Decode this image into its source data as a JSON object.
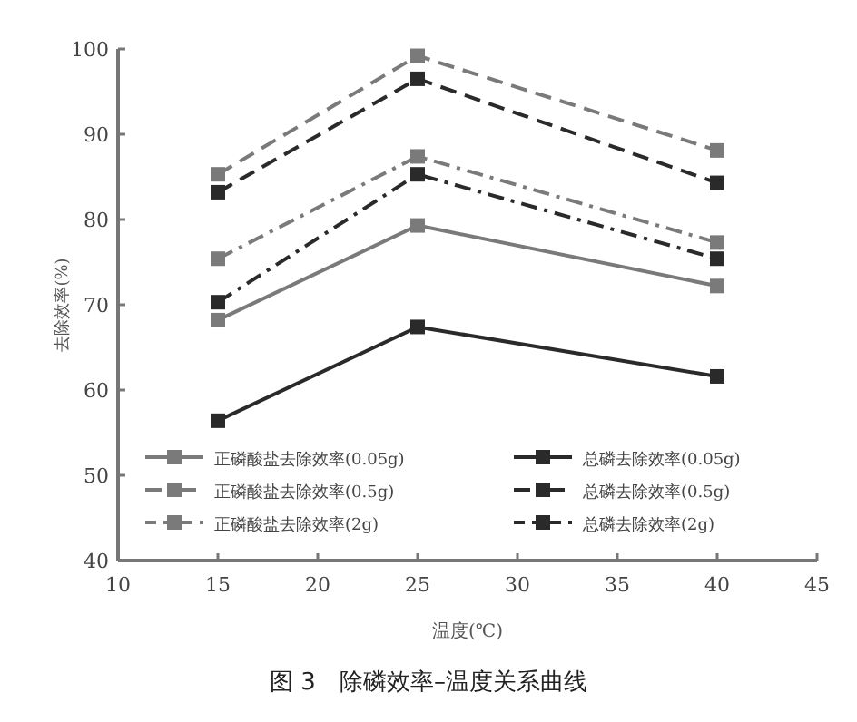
{
  "chart_data": {
    "type": "line",
    "xlabel": "温度(℃)",
    "ylabel": "去除效率(%)",
    "annotations": [
      "图 3　除磷效率–温度关系曲线"
    ],
    "x": [
      15,
      25,
      40
    ],
    "xlim": [
      10,
      45
    ],
    "xticks": [
      10,
      15,
      20,
      25,
      30,
      35,
      40,
      45
    ],
    "ylim": [
      40,
      100
    ],
    "yticks": [
      40,
      50,
      60,
      70,
      80,
      90,
      100
    ],
    "marker": "square",
    "legend": "bottom",
    "grid": false,
    "series": [
      {
        "name": "正磷酸盐去除效率(0.05g)",
        "color": "#7a7a7a",
        "line_style": "solid",
        "values": [
          68.2,
          79.3,
          72.2
        ]
      },
      {
        "name": "总磷去除效率(0.05g)",
        "color": "#2a2a2a",
        "line_style": "solid",
        "values": [
          56.4,
          67.4,
          61.6
        ]
      },
      {
        "name": "正磷酸盐去除效率(0.5g)",
        "color": "#7a7a7a",
        "line_style": "dashdot",
        "values": [
          75.4,
          87.4,
          77.3
        ]
      },
      {
        "name": "总磷去除效率(0.5g)",
        "color": "#2a2a2a",
        "line_style": "dashdot",
        "values": [
          70.3,
          85.3,
          75.4
        ]
      },
      {
        "name": "正磷酸盐去除效率(2g)",
        "color": "#7a7a7a",
        "line_style": "dashed",
        "values": [
          85.3,
          99.2,
          88.1
        ]
      },
      {
        "name": "总磷去除效率(2g)",
        "color": "#2a2a2a",
        "line_style": "dashed",
        "values": [
          83.2,
          96.5,
          84.3
        ]
      }
    ]
  }
}
